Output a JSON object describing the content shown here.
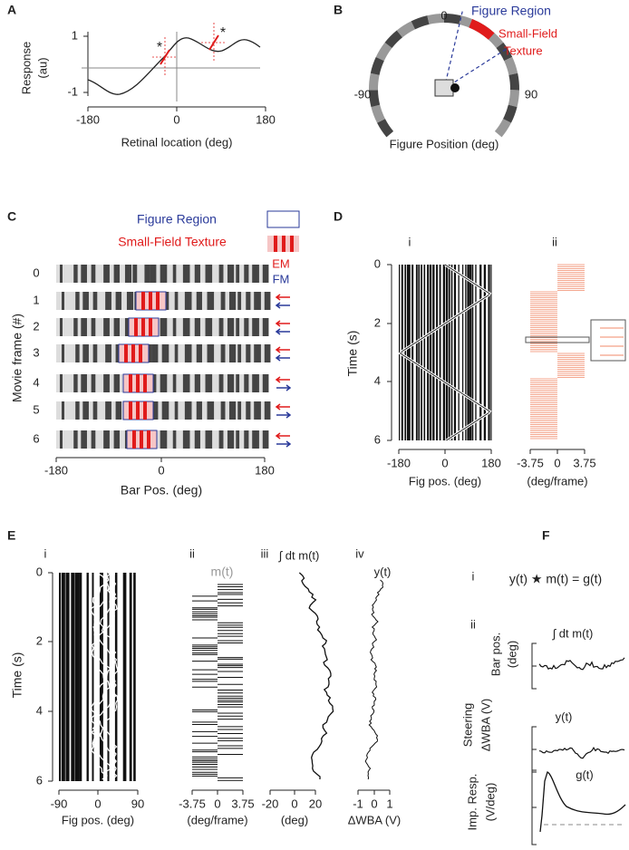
{
  "A": {
    "label": "A",
    "y_label": [
      "Response",
      "(au)"
    ],
    "y_ticks": [
      "1",
      "-1"
    ],
    "x_ticks": [
      "-180",
      "0",
      "180"
    ],
    "x_label": "Retinal location (deg)",
    "markers": [
      "*",
      "*"
    ]
  },
  "B": {
    "label": "B",
    "angle_ticks": [
      "-90",
      "0",
      "90"
    ],
    "figure_region": "Figure Region",
    "texture": [
      "Small-Field",
      "Texture"
    ],
    "x_label": "Figure Position (deg)"
  },
  "C": {
    "label": "C",
    "legend": [
      "Figure Region",
      "Small-Field Texture"
    ],
    "motion": [
      "EM",
      "FM"
    ],
    "frames": [
      "0",
      "1",
      "2",
      "3",
      "4",
      "5",
      "6"
    ],
    "y_label": "Movie frame (#)",
    "x_ticks": [
      "-180",
      "0",
      "180"
    ],
    "x_label": "Bar Pos. (deg)"
  },
  "D": {
    "label": "D",
    "subpanels": [
      "i",
      "ii"
    ],
    "y_label": "Time (s)",
    "y_ticks": [
      "0",
      "2",
      "4",
      "6"
    ],
    "i_x_ticks": [
      "-180",
      "0",
      "180"
    ],
    "i_x_label": "Fig pos. (deg)",
    "ii_x_ticks": [
      "-3.75",
      "0",
      "3.75"
    ],
    "ii_x_label": "(deg/frame)"
  },
  "E": {
    "label": "E",
    "subpanels": [
      "i",
      "ii",
      "iii",
      "iv"
    ],
    "y_label": "Time (s)",
    "y_ticks": [
      "0",
      "2",
      "4",
      "6"
    ],
    "i_x_ticks": [
      "-90",
      "0",
      "90"
    ],
    "i_x_label": "Fig pos. (deg)",
    "ii_title": "m(t)",
    "ii_x_ticks": [
      "-3.75",
      "0",
      "3.75"
    ],
    "ii_x_label": "(deg/frame)",
    "iii_title": "∫ dt m(t)",
    "iii_x_ticks": [
      "-20",
      "0",
      "20"
    ],
    "iii_x_label": "(deg)",
    "iv_title": "y(t)",
    "iv_x_ticks": [
      "-1",
      "0",
      "1"
    ],
    "iv_x_label": "ΔWBA (V)"
  },
  "F": {
    "label": "F",
    "subpanels": [
      "i",
      "ii"
    ],
    "equation": "y(t) ★ m(t) = g(t)",
    "bar_title": "∫ dt m(t)",
    "bar_label": [
      "Bar pos.",
      "(deg)"
    ],
    "steer_title": "y(t)",
    "steer_label": [
      "Steering",
      "ΔWBA (V)"
    ],
    "imp_title": "g(t)",
    "imp_label": [
      "Imp. Resp.",
      "(V/deg)"
    ]
  }
}
